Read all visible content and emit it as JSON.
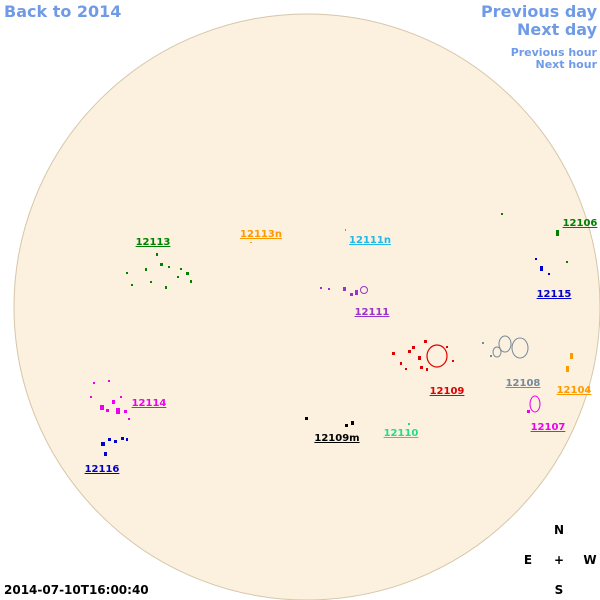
{
  "navigation": {
    "back": "Back to 2014",
    "previous_day": "Previous day",
    "next_day": "Next day",
    "previous_hour": "Previous hour",
    "next_hour": "Next hour"
  },
  "regions": [
    {
      "label": "12113",
      "color": "#008000"
    },
    {
      "label": "12113n",
      "color": "#ff9900"
    },
    {
      "label": "12111n",
      "color": "#22b8e8"
    },
    {
      "label": "12106",
      "color": "#008000"
    },
    {
      "label": "12115",
      "color": "#0000cc"
    },
    {
      "label": "12111",
      "color": "#9933cc"
    },
    {
      "label": "12109",
      "color": "#dd0000"
    },
    {
      "label": "12108",
      "color": "#778899"
    },
    {
      "label": "12104",
      "color": "#ff9900"
    },
    {
      "label": "12107",
      "color": "#ee00ee"
    },
    {
      "label": "12114",
      "color": "#ee00ee"
    },
    {
      "label": "12110",
      "color": "#22dd88"
    },
    {
      "label": "12109m",
      "color": "#000000"
    },
    {
      "label": "12116",
      "color": "#0000cc"
    }
  ],
  "timestamp": "2014-07-10T16:00:40",
  "compass": {
    "north": "N",
    "east": "E",
    "center": "+",
    "west": "W",
    "south": "S"
  }
}
